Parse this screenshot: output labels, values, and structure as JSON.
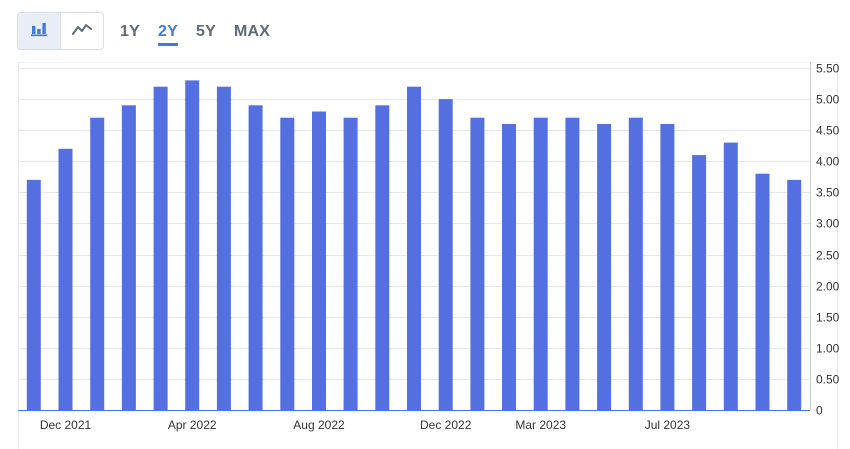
{
  "toolbar": {
    "chart_type_buttons": [
      {
        "icon": "bar-chart-icon",
        "active": true
      },
      {
        "icon": "line-chart-icon",
        "active": false
      }
    ],
    "ranges": [
      {
        "label": "1Y",
        "active": false
      },
      {
        "label": "2Y",
        "active": true
      },
      {
        "label": "5Y",
        "active": false
      },
      {
        "label": "MAX",
        "active": false
      }
    ]
  },
  "colors": {
    "bar": "#5470e0",
    "accent": "#3e7bdc",
    "grid": "#e6e8eb",
    "axis_text": "#333333"
  },
  "chart_data": {
    "type": "bar",
    "title": "",
    "xlabel": "",
    "ylabel": "",
    "ylim": [
      0,
      5.5
    ],
    "grid": true,
    "y_axis_position": "right",
    "y_ticks": [
      "0",
      "0.50",
      "1.00",
      "1.50",
      "2.00",
      "2.50",
      "3.00",
      "3.50",
      "4.00",
      "4.50",
      "5.00",
      "5.50"
    ],
    "x_tick_labels": [
      {
        "label": "Dec 2021",
        "index": 1
      },
      {
        "label": "Apr 2022",
        "index": 5
      },
      {
        "label": "Aug 2022",
        "index": 9
      },
      {
        "label": "Dec 2022",
        "index": 13
      },
      {
        "label": "Mar 2023",
        "index": 16
      },
      {
        "label": "Jul 2023",
        "index": 20
      }
    ],
    "values": [
      3.7,
      4.2,
      4.7,
      4.9,
      5.2,
      5.3,
      5.2,
      4.9,
      4.7,
      4.8,
      4.7,
      4.9,
      5.2,
      5.0,
      4.7,
      4.6,
      4.7,
      4.7,
      4.6,
      4.7,
      4.6,
      4.1,
      4.3,
      3.8,
      3.7
    ]
  }
}
